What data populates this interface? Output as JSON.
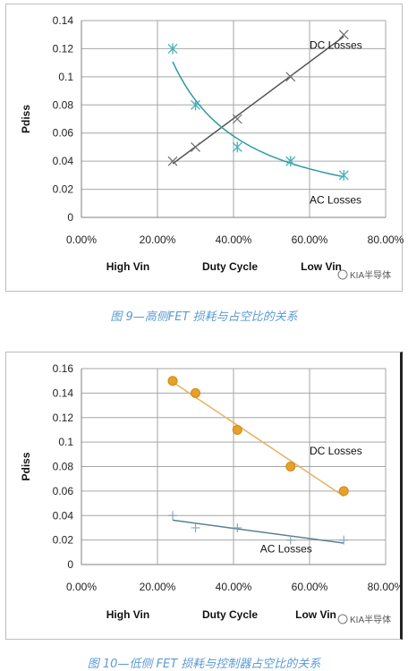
{
  "chart_data": [
    {
      "type": "line",
      "title": "",
      "xlabel": "",
      "ylabel": "Pdiss",
      "xlim": [
        0,
        0.8
      ],
      "ylim": [
        0,
        0.14
      ],
      "ytick_step": 0.02,
      "x_ticks": [
        0,
        0.2,
        0.4,
        0.6,
        0.8
      ],
      "x_tick_labels": [
        "0.00%",
        "20.00%",
        "40.00%",
        "60.00%",
        "80.00%"
      ],
      "y_tick_labels": [
        "0",
        "0.02",
        "0.04",
        "0.06",
        "0.08",
        "0.1",
        "0.12",
        "0.14"
      ],
      "grid": true,
      "bottom_labels": [
        "High Vin",
        "Duty Cycle",
        "Low Vin"
      ],
      "series": [
        {
          "name": "DC Losses",
          "marker": "x",
          "color": "#6d6d6d",
          "x": [
            0.24,
            0.3,
            0.41,
            0.55,
            0.69
          ],
          "y": [
            0.04,
            0.05,
            0.07,
            0.1,
            0.13
          ],
          "trend": "linear",
          "trend_color": "#555555"
        },
        {
          "name": "AC Losses",
          "marker": "star",
          "color": "#44b0b8",
          "x": [
            0.24,
            0.3,
            0.41,
            0.55,
            0.69
          ],
          "y": [
            0.12,
            0.08,
            0.05,
            0.04,
            0.03
          ],
          "trend": "power",
          "trend_color": "#2f9aa3"
        }
      ],
      "annotations": [
        {
          "text": "DC Losses",
          "x": 0.6,
          "y": 0.12
        },
        {
          "text": "AC Losses",
          "x": 0.6,
          "y": 0.01
        }
      ]
    },
    {
      "type": "line",
      "title": "",
      "xlabel": "",
      "ylabel": "Pdiss",
      "xlim": [
        0,
        0.8
      ],
      "ylim": [
        0,
        0.16
      ],
      "ytick_step": 0.02,
      "x_ticks": [
        0,
        0.2,
        0.4,
        0.6,
        0.8
      ],
      "x_tick_labels": [
        "0.00%",
        "20.00%",
        "40.00%",
        "60.00%",
        "80.00%"
      ],
      "y_tick_labels": [
        "0",
        "0.02",
        "0.04",
        "0.06",
        "0.08",
        "0.1",
        "0.12",
        "0.14",
        "0.16"
      ],
      "grid": true,
      "bottom_labels": [
        "High Vin",
        "Duty Cycle",
        "Low Vin"
      ],
      "series": [
        {
          "name": "DC Losses",
          "marker": "circle",
          "color": "#e6a12c",
          "x": [
            0.24,
            0.3,
            0.41,
            0.55,
            0.69
          ],
          "y": [
            0.15,
            0.14,
            0.11,
            0.08,
            0.06
          ],
          "trend": "linear",
          "trend_color": "#e6b060"
        },
        {
          "name": "AC Losses",
          "marker": "plus",
          "color": "#8aa6b8",
          "x": [
            0.24,
            0.3,
            0.41,
            0.55,
            0.69
          ],
          "y": [
            0.04,
            0.03,
            0.03,
            0.02,
            0.02
          ],
          "trend": "linear",
          "trend_color": "#5a7f93"
        }
      ],
      "annotations": [
        {
          "text": "DC Losses",
          "x": 0.6,
          "y": 0.09
        },
        {
          "text": "AC Losses",
          "x": 0.47,
          "y": 0.01
        }
      ]
    }
  ],
  "watermark": "KIA半导体",
  "captions": [
    "图 9—高侧FET 损耗与占空比的关系",
    "图 10—低侧 FET 损耗与控制器占空比的关系"
  ]
}
